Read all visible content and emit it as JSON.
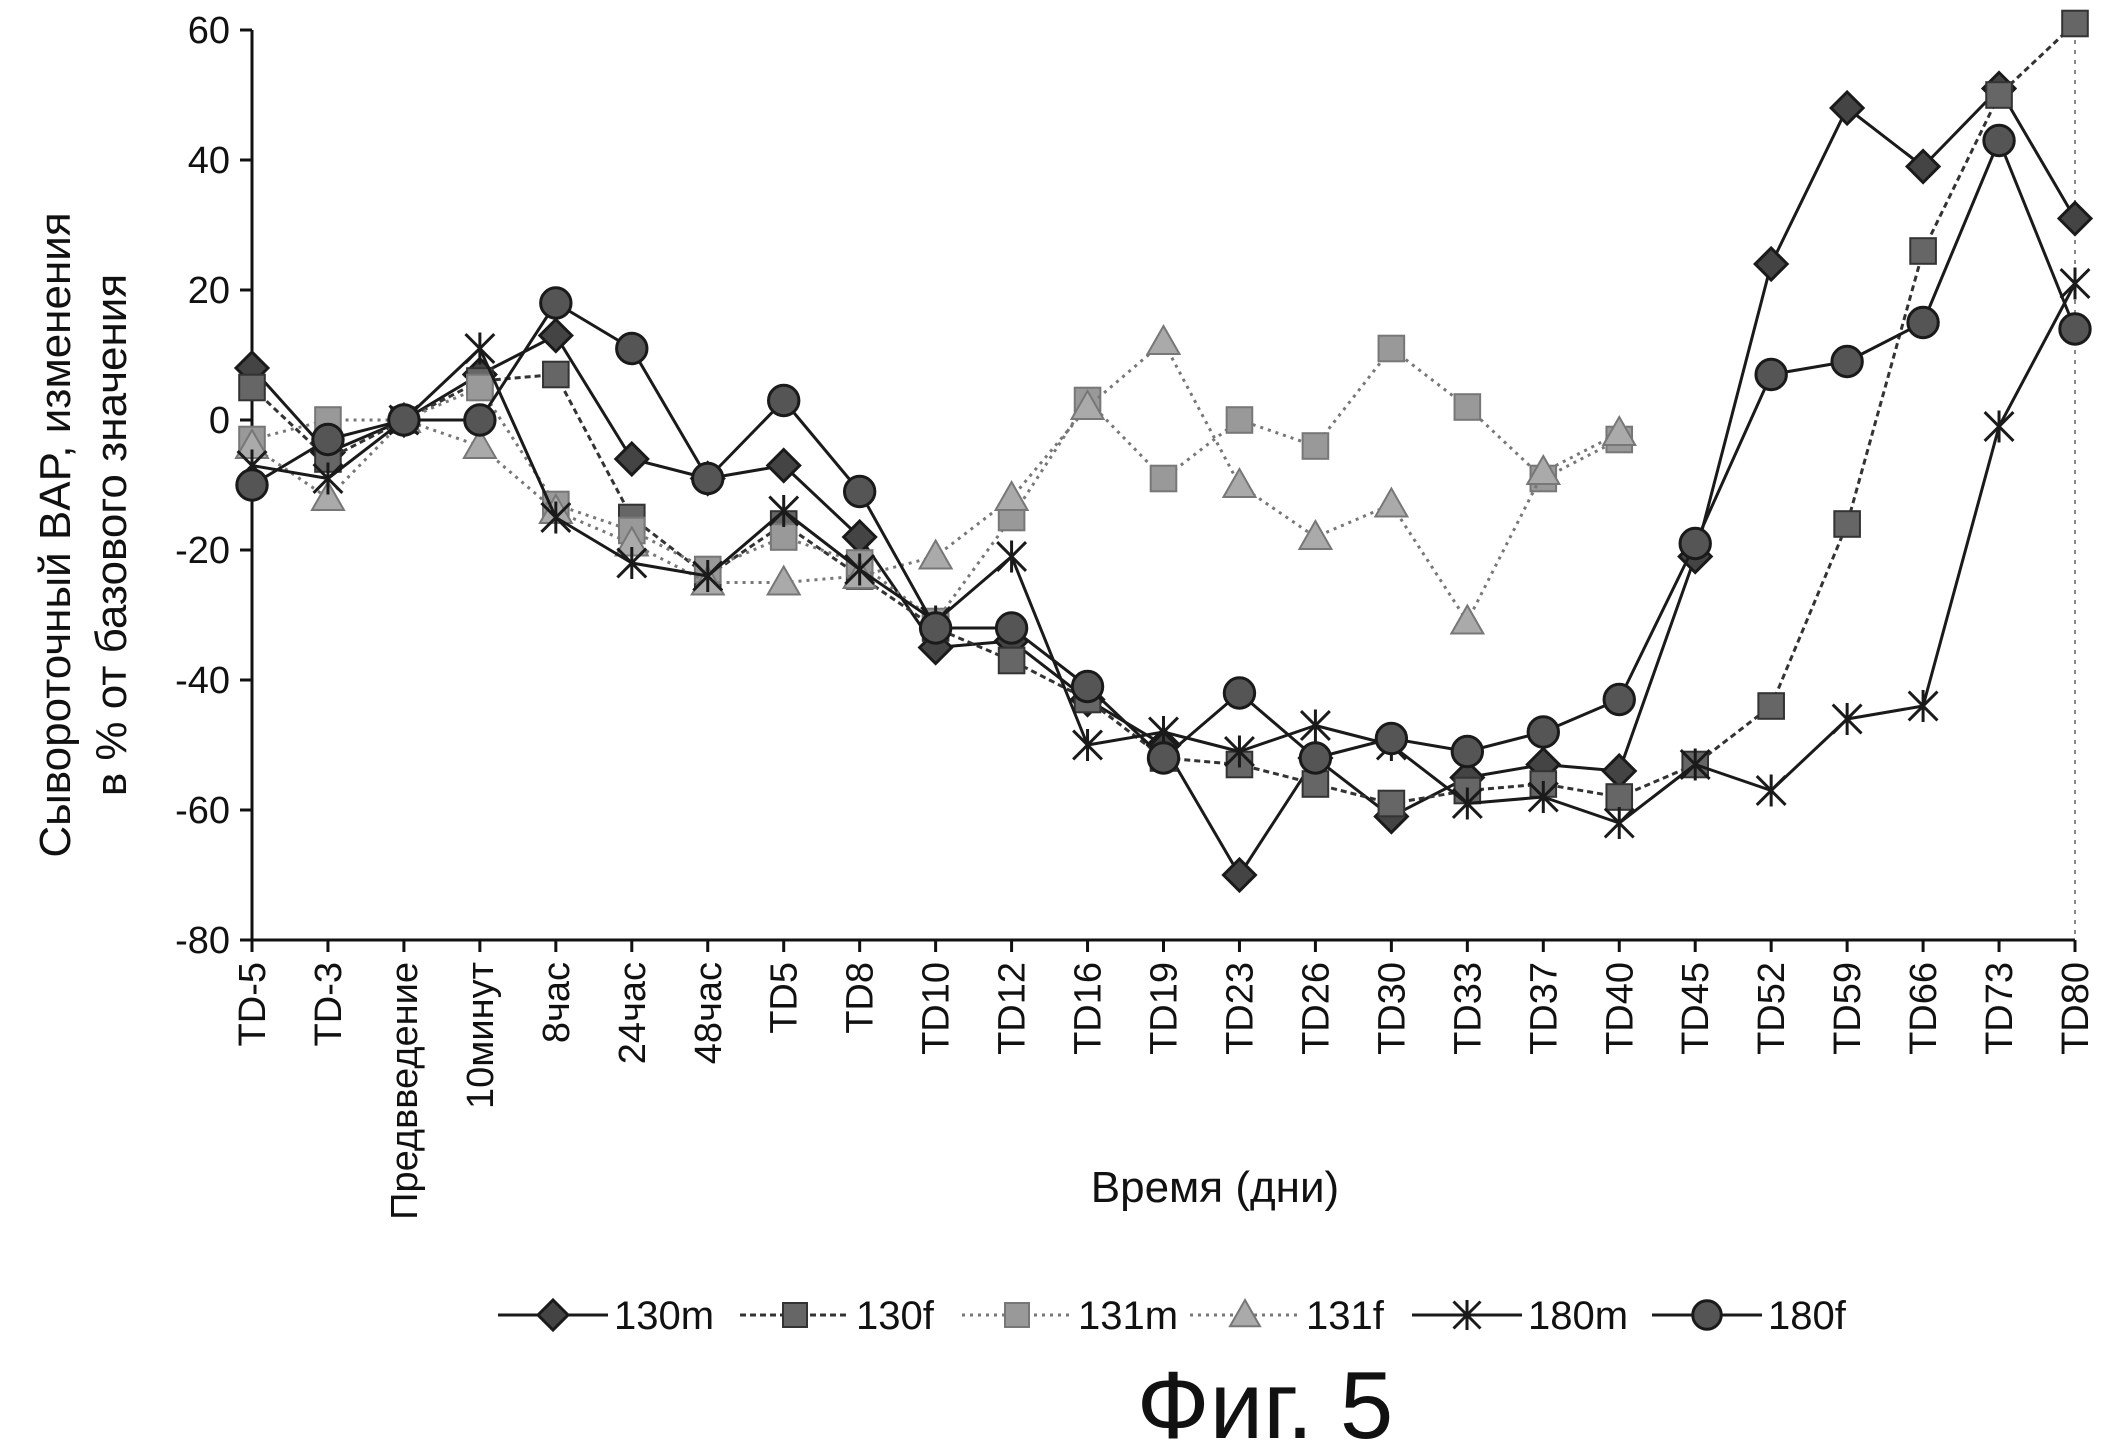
{
  "chart_data": {
    "type": "line",
    "title": "",
    "xlabel": "Время (дни)",
    "ylabel_lines": [
      "Сывороточный BAP, изменения",
      "в % от базового значения"
    ],
    "ylim": [
      -80,
      60
    ],
    "yticks": [
      60,
      40,
      20,
      0,
      -20,
      -40,
      -60,
      -80
    ],
    "categories": [
      "TD-5",
      "TD-3",
      "Предвведение",
      "10минут",
      "8час",
      "24час",
      "48час",
      "TD5",
      "TD8",
      "TD10",
      "TD12",
      "TD16",
      "TD19",
      "TD23",
      "TD26",
      "TD30",
      "TD33",
      "TD37",
      "TD40",
      "TD45",
      "TD52",
      "TD59",
      "TD66",
      "TD73",
      "TD80"
    ],
    "grid": false,
    "legend_position": "bottom",
    "series": [
      {
        "name": "130m",
        "marker": "diamond",
        "color": "#1a1a1a",
        "fill": "#444444",
        "dash": "",
        "values": [
          8,
          -5,
          0,
          7,
          13,
          -6,
          -9,
          -7,
          -18,
          -35,
          -34,
          -43,
          -50,
          -70,
          -52,
          -61,
          -55,
          -53,
          -54,
          -21,
          24,
          48,
          39,
          51,
          31
        ]
      },
      {
        "name": "130f",
        "marker": "square",
        "color": "#333333",
        "fill": "#666666",
        "dash": "6,4",
        "values": [
          5,
          -6,
          0,
          6,
          7,
          -15,
          -24,
          -16,
          -24,
          -32,
          -37,
          -43,
          -52,
          -53,
          -56,
          -59,
          -57,
          -56,
          -58,
          -53,
          -44,
          -16,
          26,
          50,
          61
        ]
      },
      {
        "name": "131m",
        "marker": "square",
        "color": "#777777",
        "fill": "#999999",
        "dash": "3,5",
        "values": [
          -3,
          0,
          0,
          5,
          -13,
          -17,
          -23,
          -18,
          -22,
          -31,
          -15,
          3,
          -9,
          0,
          -4,
          11,
          2,
          -9,
          -3,
          null,
          null,
          null,
          null,
          null,
          null
        ]
      },
      {
        "name": "131f",
        "marker": "triangle",
        "color": "#777777",
        "fill": "#aaaaaa",
        "dash": "3,5",
        "values": [
          -4,
          -12,
          0,
          -4,
          -14,
          -19,
          -25,
          -25,
          -24,
          -21,
          -12,
          2,
          12,
          -10,
          -18,
          -13,
          -31,
          -8,
          -2,
          null,
          null,
          null,
          null,
          null,
          null
        ]
      },
      {
        "name": "180m",
        "marker": "asterisk",
        "color": "#1a1a1a",
        "fill": "#1a1a1a",
        "dash": "",
        "values": [
          -7,
          -9,
          0,
          11,
          -15,
          -22,
          -24,
          -14,
          -23,
          -31,
          -21,
          -50,
          -48,
          -51,
          -47,
          -50,
          -59,
          -58,
          -62,
          -53,
          -57,
          -46,
          -44,
          -1,
          21
        ]
      },
      {
        "name": "180f",
        "marker": "circle",
        "color": "#1a1a1a",
        "fill": "#555555",
        "dash": "",
        "values": [
          -10,
          -3,
          0,
          0,
          18,
          11,
          -9,
          3,
          -11,
          -32,
          -32,
          -41,
          -52,
          -42,
          -52,
          -49,
          -51,
          -48,
          -43,
          -19,
          7,
          9,
          15,
          43,
          14
        ]
      }
    ]
  },
  "figure_caption": "Фиг. 5"
}
